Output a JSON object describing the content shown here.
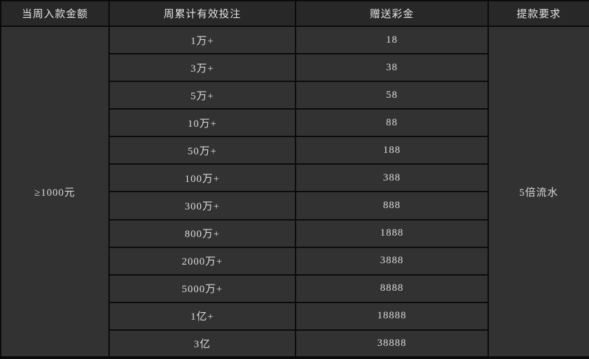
{
  "colors": {
    "border": "#0b0b0b",
    "header_bg": "#282828",
    "cell_bg": "#323232",
    "text": "#dcdcdc"
  },
  "table": {
    "headers": {
      "deposit": "当周入款金额",
      "bets": "周累计有效投注",
      "bonus": "赠送彩金",
      "withdrawal": "提款要求"
    },
    "deposit_requirement": "≥1000元",
    "withdrawal_requirement": "5倍流水",
    "rows": [
      {
        "bet": "1万+",
        "bonus": "18"
      },
      {
        "bet": "3万+",
        "bonus": "38"
      },
      {
        "bet": "5万+",
        "bonus": "58"
      },
      {
        "bet": "10万+",
        "bonus": "88"
      },
      {
        "bet": "50万+",
        "bonus": "188"
      },
      {
        "bet": "100万+",
        "bonus": "388"
      },
      {
        "bet": "300万+",
        "bonus": "888"
      },
      {
        "bet": "800万+",
        "bonus": "1888"
      },
      {
        "bet": "2000万+",
        "bonus": "3888"
      },
      {
        "bet": "5000万+",
        "bonus": "8888"
      },
      {
        "bet": "1亿+",
        "bonus": "18888"
      },
      {
        "bet": "3亿",
        "bonus": "38888"
      }
    ]
  }
}
